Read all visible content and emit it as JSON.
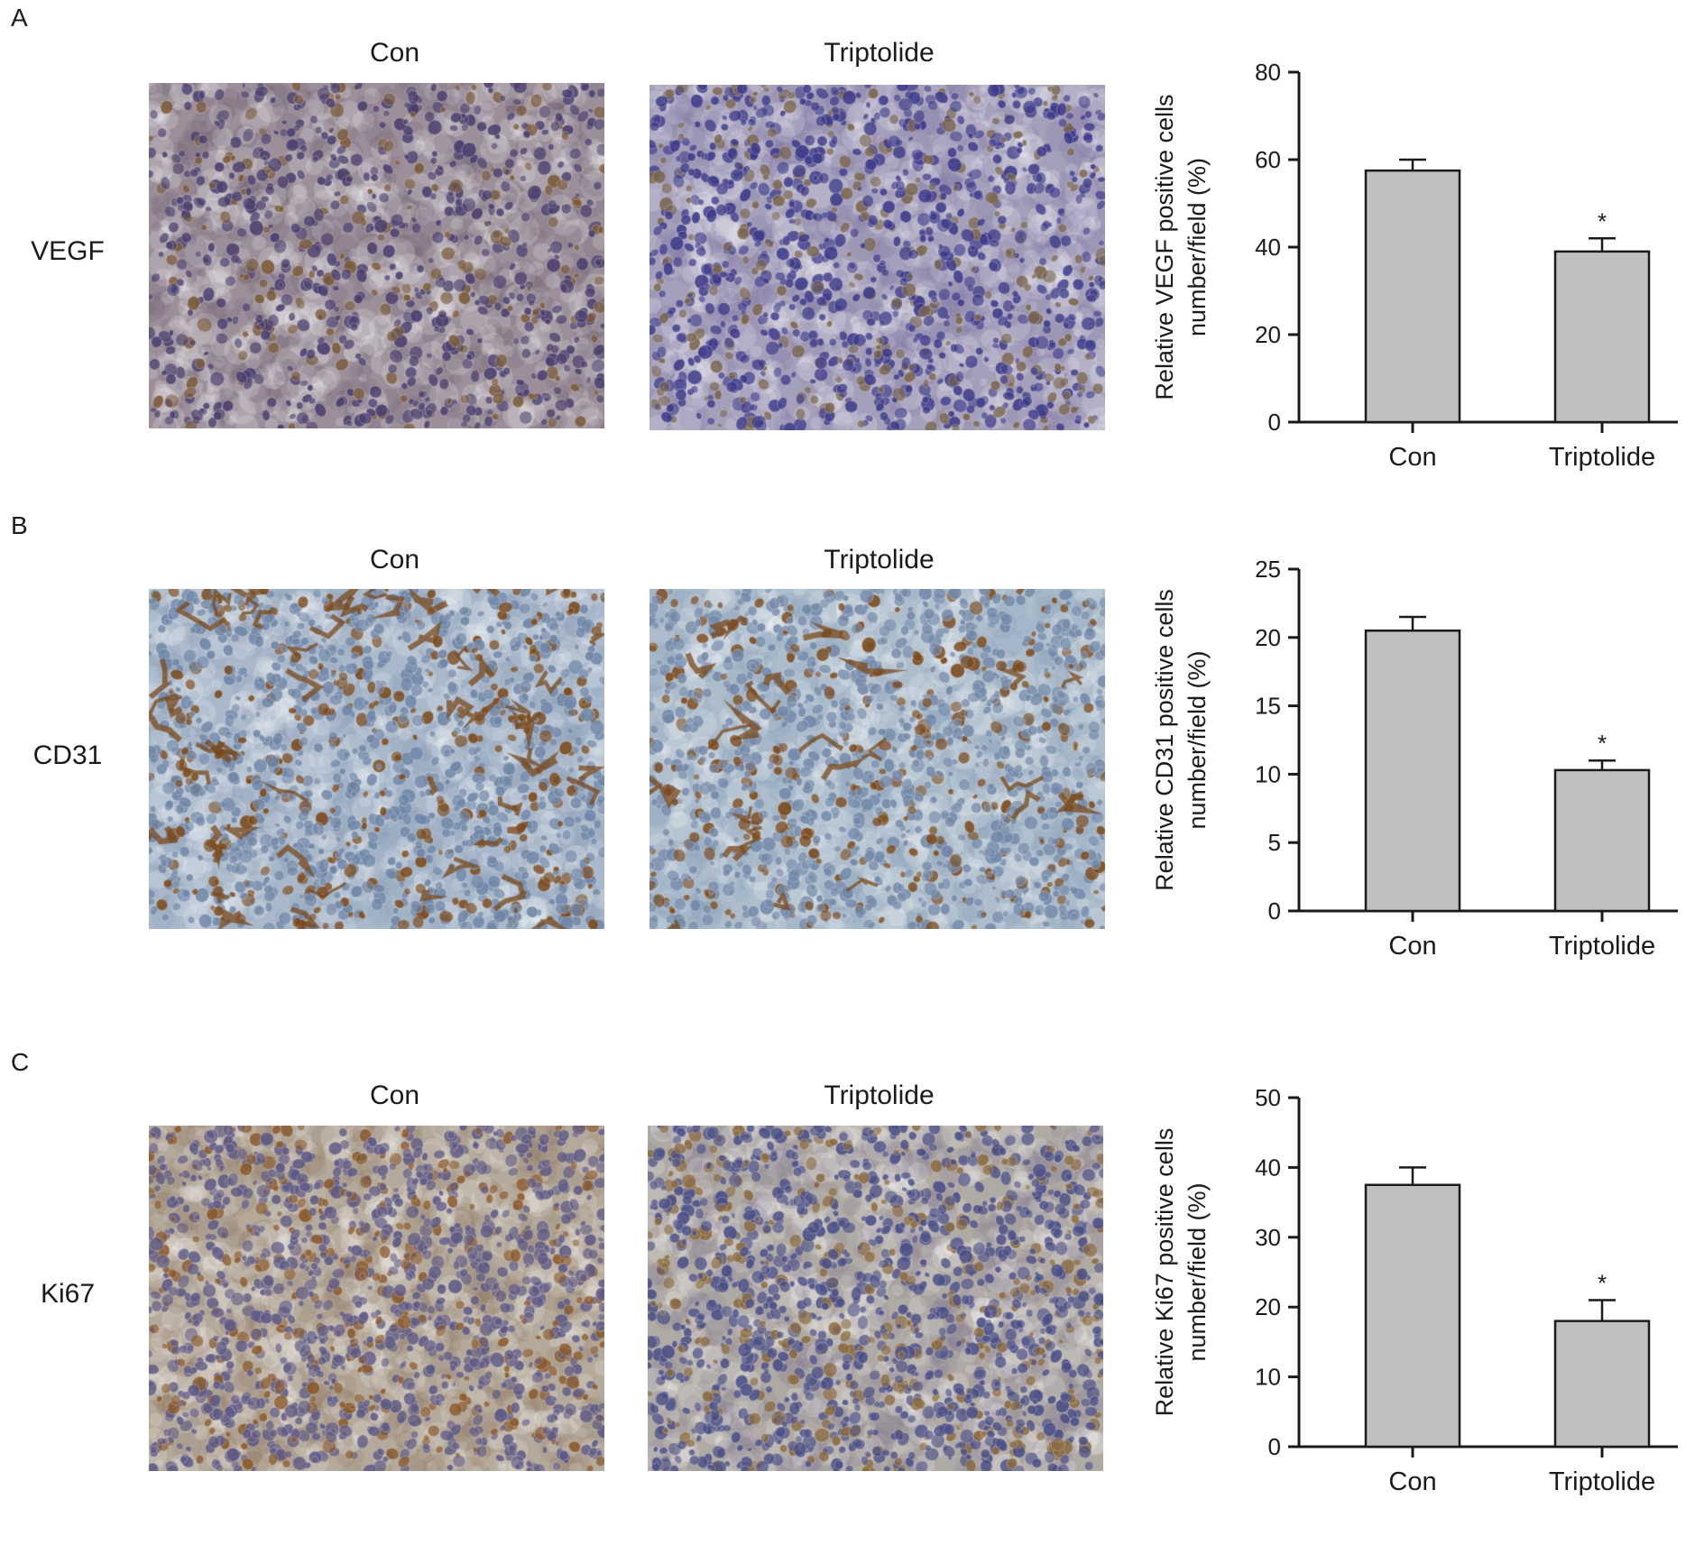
{
  "panels": [
    {
      "letter": "A",
      "marker": "VEGF",
      "left_title": "Con",
      "right_title": "Triptolide",
      "stain_left": {
        "bg": "#9c8f9a",
        "cell": "#6b5a6a",
        "nucleus": "#4a3f6e",
        "brown": "#7a5a3a",
        "density": 0.6
      },
      "stain_right": {
        "bg": "#a49fbb",
        "cell": "#7e76a3",
        "nucleus": "#3e3b8a",
        "brown": "#7a6650",
        "density": 0.8
      }
    },
    {
      "letter": "B",
      "marker": "CD31",
      "left_title": "Con",
      "right_title": "Triptolide",
      "stain_left": {
        "bg": "#a9b9cb",
        "cell": "#8397b3",
        "nucleus": "#6f86a8",
        "brown": "#7a4a1e",
        "density": 0.9
      },
      "stain_right": {
        "bg": "#adbdcc",
        "cell": "#879bb5",
        "nucleus": "#7389aa",
        "brown": "#7a4a1e",
        "density": 0.9
      }
    },
    {
      "letter": "C",
      "marker": "Ki67",
      "left_title": "Con",
      "right_title": "Triptolide",
      "stain_left": {
        "bg": "#b4a99a",
        "cell": "#8a7560",
        "nucleus": "#5f5a84",
        "brown": "#8a5a2e",
        "density": 1.0
      },
      "stain_right": {
        "bg": "#b0aaa4",
        "cell": "#7d7690",
        "nucleus": "#4b4f86",
        "brown": "#8a6a40",
        "density": 1.0
      }
    }
  ],
  "chart_data": [
    {
      "type": "bar",
      "categories": [
        "Con",
        "Triptolide"
      ],
      "values": [
        57.5,
        39
      ],
      "errors": [
        2.5,
        3
      ],
      "significance": [
        "",
        "*"
      ],
      "ylabel_line1": "Relative VEGF positive cells",
      "ylabel_line2": "number/field (%)",
      "ylim": [
        0,
        80
      ],
      "yticks": [
        0,
        20,
        40,
        60,
        80
      ],
      "bar_color": "#c0c0c0"
    },
    {
      "type": "bar",
      "categories": [
        "Con",
        "Triptolide"
      ],
      "values": [
        20.5,
        10.3
      ],
      "errors": [
        1,
        0.7
      ],
      "significance": [
        "",
        "*"
      ],
      "ylabel_line1": "Relative CD31 positive cells",
      "ylabel_line2": "number/field (%)",
      "ylim": [
        0,
        25
      ],
      "yticks": [
        0,
        5,
        10,
        15,
        20,
        25
      ],
      "bar_color": "#c0c0c0"
    },
    {
      "type": "bar",
      "categories": [
        "Con",
        "Triptolide"
      ],
      "values": [
        37.5,
        18
      ],
      "errors": [
        2.5,
        3
      ],
      "significance": [
        "",
        "*"
      ],
      "ylabel_line1": "Relative Ki67 positive cells",
      "ylabel_line2": "number/field (%)",
      "ylim": [
        0,
        50
      ],
      "yticks": [
        0,
        10,
        20,
        30,
        40,
        50
      ],
      "bar_color": "#c0c0c0"
    }
  ]
}
